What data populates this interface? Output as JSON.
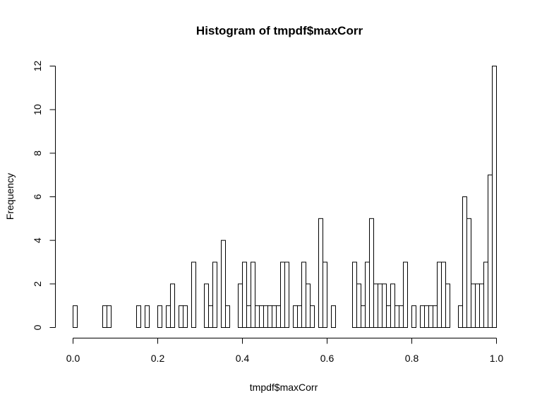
{
  "chart_data": {
    "type": "bar",
    "title": "Histogram of tmpdf$maxCorr",
    "xlabel": "tmpdf$maxCorr",
    "ylabel": "Frequency",
    "xlim": [
      0,
      1
    ],
    "ylim": [
      0,
      12
    ],
    "bin_width": 0.01,
    "x_ticks": [
      "0.0",
      "0.2",
      "0.4",
      "0.6",
      "0.8",
      "1.0"
    ],
    "y_ticks": [
      "0",
      "2",
      "4",
      "6",
      "8",
      "10",
      "12"
    ],
    "grid": false,
    "values": [
      1,
      0,
      0,
      0,
      0,
      0,
      0,
      1,
      1,
      0,
      0,
      0,
      0,
      0,
      0,
      1,
      0,
      1,
      0,
      0,
      1,
      0,
      1,
      2,
      0,
      1,
      1,
      0,
      3,
      0,
      0,
      2,
      1,
      3,
      0,
      4,
      1,
      0,
      0,
      2,
      3,
      1,
      3,
      1,
      1,
      1,
      1,
      1,
      1,
      3,
      3,
      0,
      1,
      1,
      3,
      2,
      1,
      0,
      5,
      3,
      0,
      1,
      0,
      0,
      0,
      0,
      3,
      2,
      1,
      3,
      5,
      2,
      2,
      2,
      1,
      2,
      1,
      1,
      3,
      0,
      1,
      0,
      1,
      1,
      1,
      1,
      3,
      3,
      2,
      0,
      0,
      1,
      6,
      5,
      2,
      2,
      2,
      3,
      7,
      12
    ]
  }
}
